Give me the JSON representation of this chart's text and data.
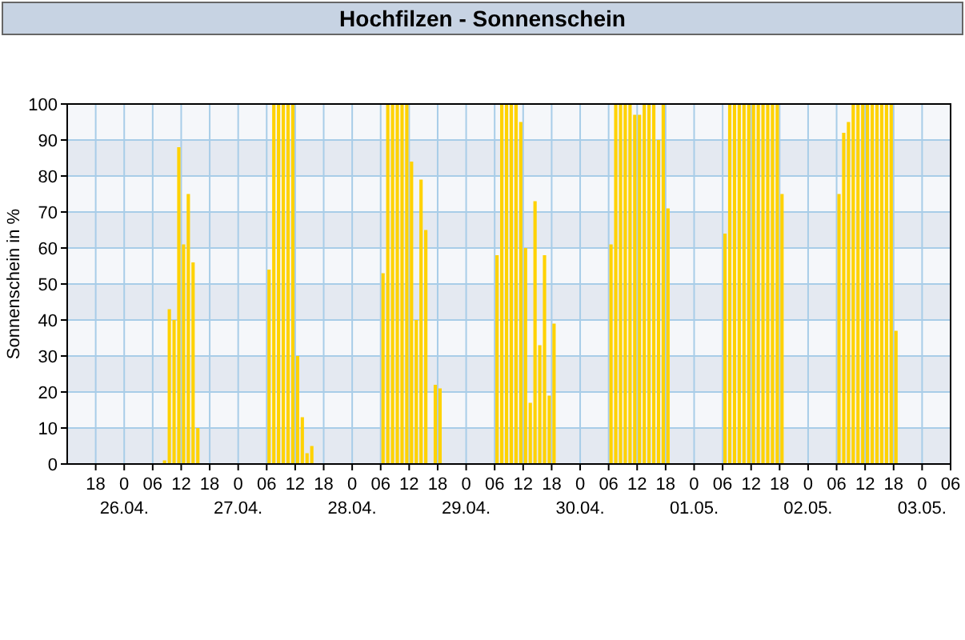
{
  "chart_data": {
    "type": "bar",
    "title": "Hochfilzen - Sonnenschein",
    "ylabel": "Sonnenschein in %",
    "x": [
      "--04-26T08:00",
      "--04-26T09:00",
      "--04-26T10:00",
      "--04-26T11:00",
      "--04-26T12:00",
      "--04-26T13:00",
      "--04-26T14:00",
      "--04-26T15:00",
      "--04-27T06:00",
      "--04-27T07:00",
      "--04-27T08:00",
      "--04-27T09:00",
      "--04-27T10:00",
      "--04-27T11:00",
      "--04-27T12:00",
      "--04-27T13:00",
      "--04-27T14:00",
      "--04-27T15:00",
      "--04-28T06:00",
      "--04-28T07:00",
      "--04-28T08:00",
      "--04-28T09:00",
      "--04-28T10:00",
      "--04-28T11:00",
      "--04-28T12:00",
      "--04-28T13:00",
      "--04-28T14:00",
      "--04-28T15:00",
      "--04-28T17:00",
      "--04-28T18:00",
      "--04-29T06:00",
      "--04-29T07:00",
      "--04-29T08:00",
      "--04-29T09:00",
      "--04-29T10:00",
      "--04-29T11:00",
      "--04-29T12:00",
      "--04-29T13:00",
      "--04-29T14:00",
      "--04-29T15:00",
      "--04-29T16:00",
      "--04-29T17:00",
      "--04-29T18:00",
      "--04-30T06:00",
      "--04-30T07:00",
      "--04-30T08:00",
      "--04-30T09:00",
      "--04-30T10:00",
      "--04-30T11:00",
      "--04-30T12:00",
      "--04-30T13:00",
      "--04-30T14:00",
      "--04-30T15:00",
      "--04-30T16:00",
      "--04-30T17:00",
      "--04-30T18:00",
      "--05-01T06:00",
      "--05-01T07:00",
      "--05-01T08:00",
      "--05-01T09:00",
      "--05-01T10:00",
      "--05-01T11:00",
      "--05-01T12:00",
      "--05-01T13:00",
      "--05-01T14:00",
      "--05-01T15:00",
      "--05-01T16:00",
      "--05-01T17:00",
      "--05-01T18:00",
      "--05-02T06:00",
      "--05-02T07:00",
      "--05-02T08:00",
      "--05-02T09:00",
      "--05-02T10:00",
      "--05-02T11:00",
      "--05-02T12:00",
      "--05-02T13:00",
      "--05-02T14:00",
      "--05-02T15:00",
      "--05-02T16:00",
      "--05-02T17:00",
      "--05-02T18:00"
    ],
    "values": [
      1,
      43,
      40,
      88,
      61,
      75,
      56,
      10,
      54,
      100,
      100,
      100,
      100,
      100,
      30,
      13,
      3,
      5,
      53,
      100,
      100,
      100,
      100,
      100,
      84,
      40,
      79,
      65,
      22,
      21,
      58,
      100,
      100,
      100,
      100,
      95,
      60,
      17,
      73,
      33,
      58,
      19,
      39,
      61,
      100,
      100,
      100,
      100,
      97,
      97,
      100,
      100,
      100,
      90,
      100,
      71,
      64,
      100,
      100,
      100,
      100,
      100,
      100,
      100,
      100,
      100,
      100,
      100,
      75,
      75,
      92,
      95,
      100,
      100,
      100,
      100,
      100,
      100,
      100,
      100,
      100,
      37
    ],
    "color": "#ffd200",
    "xlim": [
      "--04-25T12:00",
      "--05-03T06:00"
    ],
    "xticks": [
      {
        "value": "--04-25T18:00",
        "label": "18"
      },
      {
        "value": "--04-26T00:00",
        "label": "0\n26.04."
      },
      {
        "value": "--04-26T06:00",
        "label": "06"
      },
      {
        "value": "--04-26T12:00",
        "label": "12"
      },
      {
        "value": "--04-26T18:00",
        "label": "18"
      },
      {
        "value": "--04-27T00:00",
        "label": "0\n27.04."
      },
      {
        "value": "--04-27T06:00",
        "label": "06"
      },
      {
        "value": "--04-27T12:00",
        "label": "12"
      },
      {
        "value": "--04-27T18:00",
        "label": "18"
      },
      {
        "value": "--04-28T00:00",
        "label": "0\n28.04."
      },
      {
        "value": "--04-28T06:00",
        "label": "06"
      },
      {
        "value": "--04-28T12:00",
        "label": "12"
      },
      {
        "value": "--04-28T18:00",
        "label": "18"
      },
      {
        "value": "--04-29T00:00",
        "label": "0\n29.04."
      },
      {
        "value": "--04-29T06:00",
        "label": "06"
      },
      {
        "value": "--04-29T12:00",
        "label": "12"
      },
      {
        "value": "--04-29T18:00",
        "label": "18"
      },
      {
        "value": "--04-30T00:00",
        "label": "0\n30.04."
      },
      {
        "value": "--04-30T06:00",
        "label": "06"
      },
      {
        "value": "--04-30T12:00",
        "label": "12"
      },
      {
        "value": "--04-30T18:00",
        "label": "18"
      },
      {
        "value": "--05-01T00:00",
        "label": "0\n01.05."
      },
      {
        "value": "--05-01T06:00",
        "label": "06"
      },
      {
        "value": "--05-01T12:00",
        "label": "12"
      },
      {
        "value": "--05-01T18:00",
        "label": "18"
      },
      {
        "value": "--05-02T00:00",
        "label": "0\n02.05."
      },
      {
        "value": "--05-02T06:00",
        "label": "06"
      },
      {
        "value": "--05-02T12:00",
        "label": "12"
      },
      {
        "value": "--05-02T18:00",
        "label": "18"
      },
      {
        "value": "--05-03T00:00",
        "label": "0\n03.05."
      },
      {
        "value": "--05-03T06:00",
        "label": "06"
      }
    ],
    "ylim": [
      0,
      100
    ],
    "yticks": [
      0,
      10,
      20,
      30,
      40,
      50,
      60,
      70,
      80,
      90,
      100
    ],
    "grid": true
  }
}
